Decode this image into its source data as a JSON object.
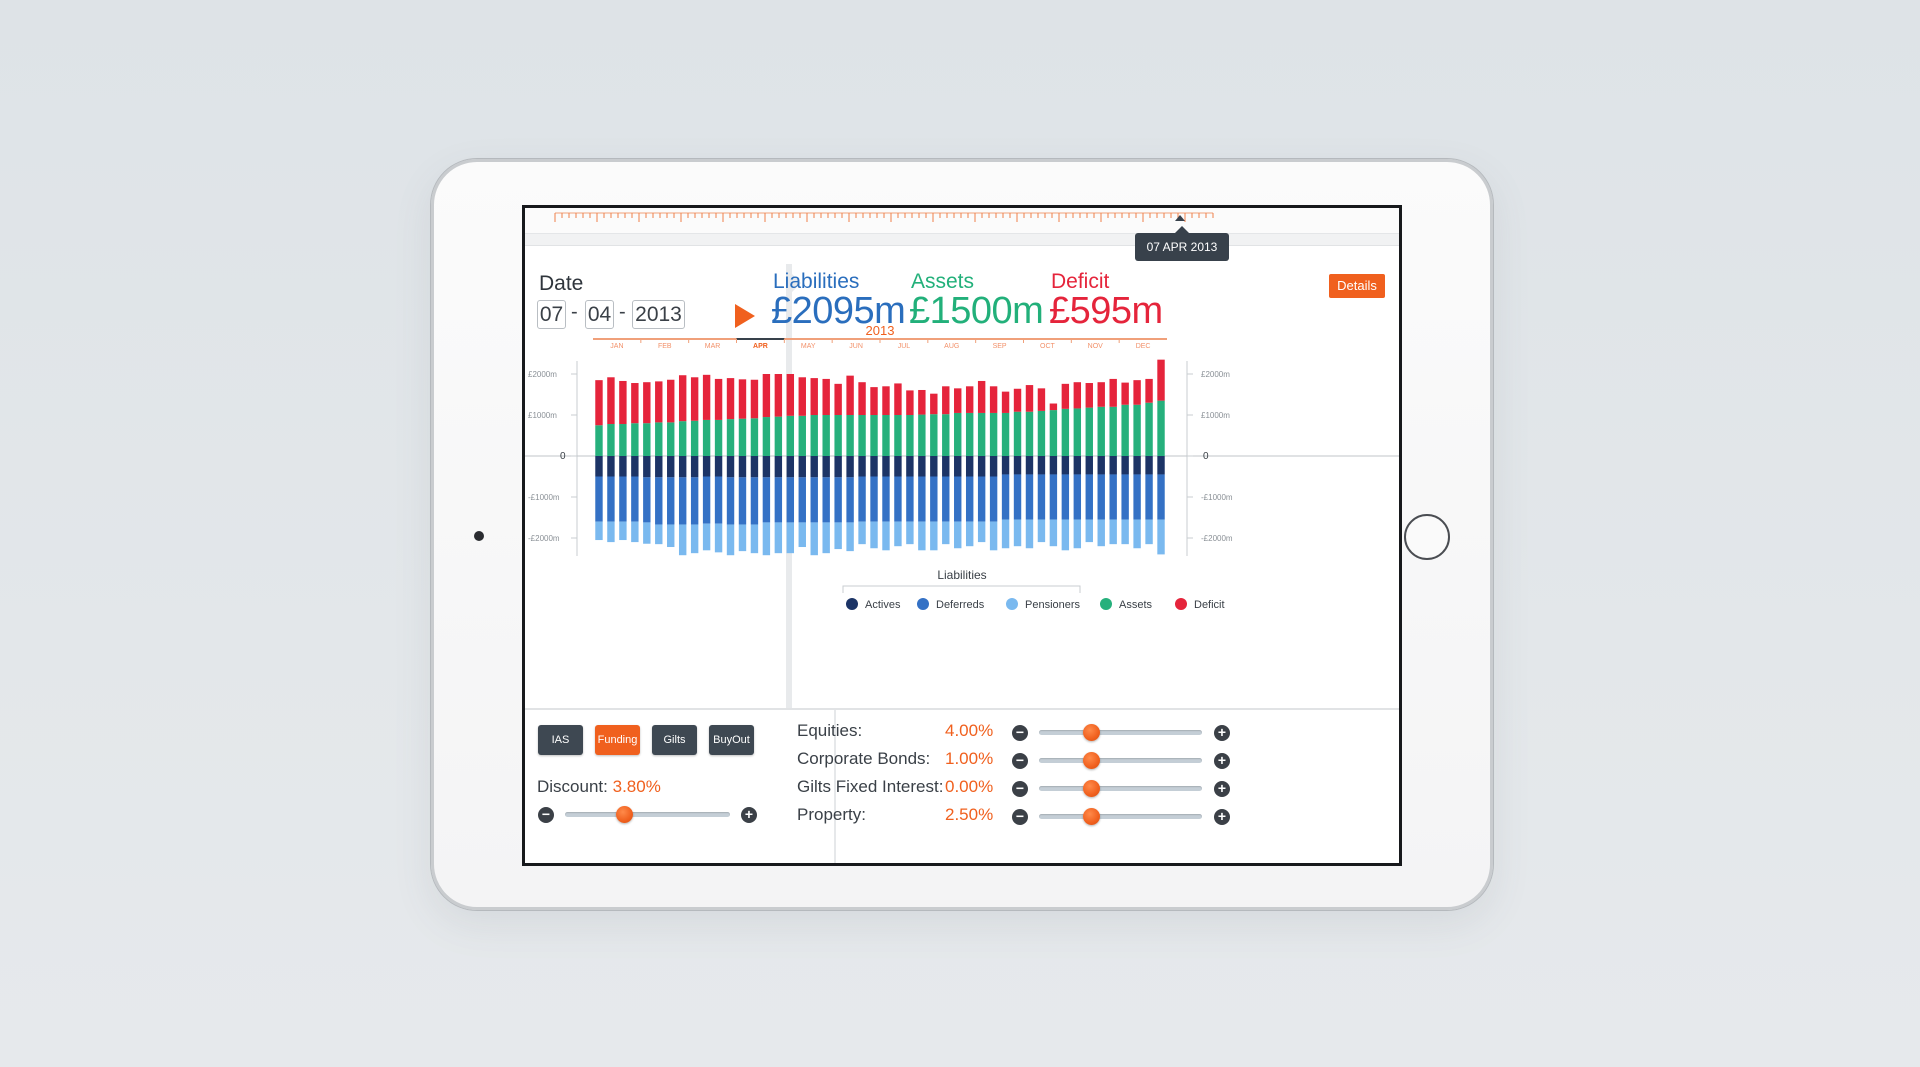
{
  "timeline": {
    "selected_date": "07 APR 2013"
  },
  "date_picker": {
    "label": "Date",
    "day": "07",
    "month": "04",
    "year": "2013",
    "separator": "-"
  },
  "summary": {
    "liabilities": {
      "label": "Liabilities",
      "value": "£2095m",
      "color": "#2a6ebd"
    },
    "assets": {
      "label": "Assets",
      "value": "£1500m",
      "color": "#22b07a"
    },
    "deficit": {
      "label": "Deficit",
      "value": "£595m",
      "color": "#e5243b"
    },
    "details_label": "Details"
  },
  "chart_data": {
    "type": "bar",
    "title": "2013",
    "months": [
      "JAN",
      "FEB",
      "MAR",
      "APR",
      "MAY",
      "JUN",
      "JUL",
      "AUG",
      "SEP",
      "OCT",
      "NOV",
      "DEC"
    ],
    "selected_month": "APR",
    "y_ticks": [
      "£2000m",
      "£1000m",
      "0",
      "-£1000m",
      "-£2000m"
    ],
    "ylim": [
      -2400,
      2400
    ],
    "stacking": "Assets and Deficit stacked above zero; Actives, Deferreds and Pensioners stacked below zero",
    "legend_title": "Liabilities",
    "series": [
      {
        "name": "Actives",
        "color": "#1c3466",
        "values": [
          -500,
          -500,
          -500,
          -500,
          -520,
          -520,
          -520,
          -520,
          -520,
          -500,
          -500,
          -520,
          -520,
          -520,
          -520,
          -520,
          -520,
          -520,
          -520,
          -520,
          -520,
          -520,
          -500,
          -500,
          -500,
          -500,
          -500,
          -500,
          -500,
          -500,
          -500,
          -500,
          -500,
          -500,
          -450,
          -450,
          -450,
          -450,
          -450,
          -450,
          -450,
          -450,
          -450,
          -450,
          -450,
          -450,
          -450,
          -450
        ]
      },
      {
        "name": "Deferreds",
        "color": "#3471c5",
        "values": [
          -1100,
          -1100,
          -1100,
          -1100,
          -1100,
          -1150,
          -1150,
          -1150,
          -1150,
          -1150,
          -1150,
          -1150,
          -1150,
          -1150,
          -1100,
          -1100,
          -1100,
          -1100,
          -1100,
          -1100,
          -1100,
          -1100,
          -1100,
          -1100,
          -1100,
          -1100,
          -1100,
          -1100,
          -1100,
          -1100,
          -1100,
          -1100,
          -1100,
          -1100,
          -1100,
          -1100,
          -1100,
          -1100,
          -1100,
          -1100,
          -1100,
          -1100,
          -1100,
          -1100,
          -1100,
          -1100,
          -1100,
          -1100
        ]
      },
      {
        "name": "Pensioners",
        "color": "#7ab9ef",
        "values": [
          -450,
          -500,
          -450,
          -500,
          -520,
          -480,
          -550,
          -750,
          -700,
          -650,
          -700,
          -750,
          -650,
          -700,
          -800,
          -750,
          -750,
          -600,
          -800,
          -750,
          -650,
          -700,
          -550,
          -650,
          -700,
          -600,
          -550,
          -700,
          -700,
          -550,
          -650,
          -600,
          -500,
          -700,
          -700,
          -650,
          -700,
          -550,
          -650,
          -750,
          -700,
          -550,
          -650,
          -600,
          -600,
          -700,
          -600,
          -850
        ]
      },
      {
        "name": "Assets",
        "color": "#26b07c",
        "values": [
          750,
          780,
          780,
          800,
          800,
          820,
          820,
          850,
          860,
          880,
          880,
          900,
          910,
          920,
          950,
          960,
          980,
          980,
          1000,
          1000,
          1000,
          1000,
          1000,
          1000,
          1000,
          1000,
          1000,
          1010,
          1020,
          1020,
          1050,
          1050,
          1050,
          1050,
          1050,
          1080,
          1080,
          1100,
          1120,
          1150,
          1160,
          1180,
          1200,
          1200,
          1250,
          1250,
          1300,
          1350
        ]
      },
      {
        "name": "Deficit",
        "color": "#e5243b",
        "values": [
          1100,
          1140,
          1050,
          980,
          1000,
          1000,
          1040,
          1120,
          1060,
          1100,
          1000,
          1000,
          960,
          940,
          1050,
          1040,
          1020,
          940,
          900,
          880,
          760,
          960,
          800,
          680,
          700,
          770,
          600,
          600,
          500,
          680,
          600,
          650,
          780,
          650,
          520,
          560,
          650,
          550,
          160,
          610,
          640,
          600,
          600,
          680,
          540,
          600,
          580,
          1000
        ]
      }
    ]
  },
  "modes": [
    {
      "label": "IAS",
      "active": false
    },
    {
      "label": "Funding",
      "active": true
    },
    {
      "label": "Gilts",
      "active": false
    },
    {
      "label": "BuyOut",
      "active": false
    }
  ],
  "discount": {
    "label": "Discount:",
    "value": "3.80%",
    "level": 0.36
  },
  "controls": [
    {
      "label": "Equities:",
      "value": "4.00%",
      "level": 0.32
    },
    {
      "label": "Corporate Bonds:",
      "value": "1.00%",
      "level": 0.32
    },
    {
      "label": "Gilts Fixed Interest:",
      "value": "0.00%",
      "level": 0.32
    },
    {
      "label": "Property:",
      "value": "2.50%",
      "level": 0.32
    }
  ],
  "colors": {
    "accent": "#f0601e",
    "dark_button": "#3e4852"
  }
}
